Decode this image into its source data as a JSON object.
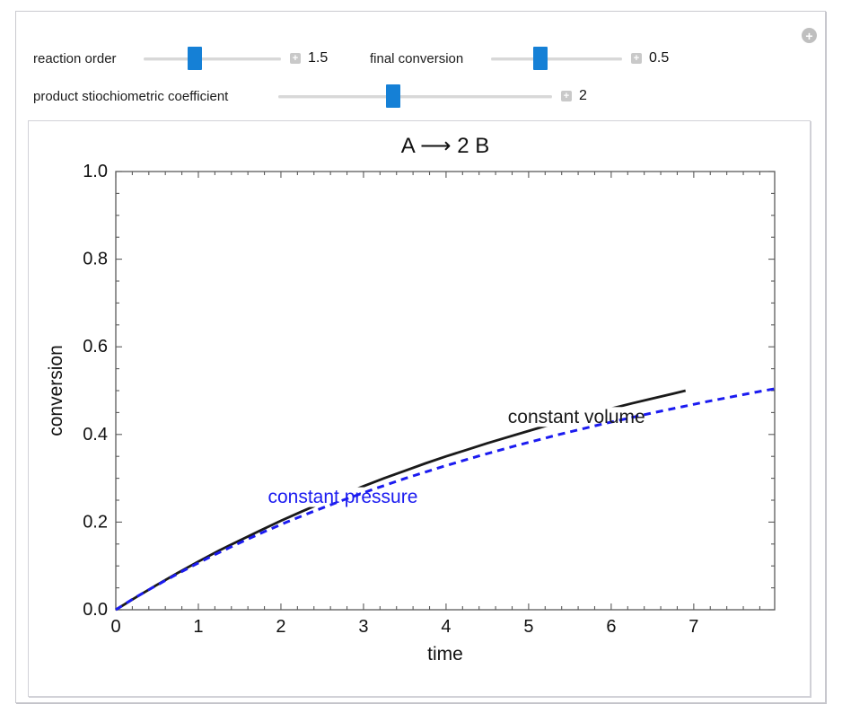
{
  "window": {
    "background": "#ffffff",
    "accent_blue": "#1580d6"
  },
  "icons": {
    "snapshot_plus": "+",
    "expand_plus": "+"
  },
  "controls": {
    "sliders": [
      {
        "label": "reaction order",
        "value": "1.5",
        "thumb_percent": 37
      },
      {
        "label": "final conversion",
        "value": "0.5",
        "thumb_percent": 38
      },
      {
        "label": "product stiochiometric coefficient",
        "value": "2",
        "thumb_percent": 42
      }
    ]
  },
  "chart_data": {
    "type": "line",
    "title": "A ⟶ 2 B",
    "xlabel": "time",
    "ylabel": "conversion",
    "xlim": [
      0,
      7.98
    ],
    "ylim": [
      0,
      1.0
    ],
    "xticks": [
      0,
      1,
      2,
      3,
      4,
      5,
      6,
      7
    ],
    "xtick_labels": [
      "0",
      "1",
      "2",
      "3",
      "4",
      "5",
      "6",
      "7"
    ],
    "yticks": [
      0,
      0.2,
      0.4,
      0.6,
      0.8,
      1.0
    ],
    "ytick_labels": [
      "0.0",
      "0.2",
      "0.4",
      "0.6",
      "0.8",
      "1.0"
    ],
    "x_minor_step": 0.2,
    "y_minor_step": 0.05,
    "frame": true,
    "grid": false,
    "frame_color": "#5a5a5a",
    "series": [
      {
        "name": "constant volume",
        "color": "#1a1a1a",
        "style": "solid",
        "label_pos": [
          5.58,
          0.44
        ],
        "label_bg": [
          206,
          22
        ],
        "points": [
          [
            0,
            0
          ],
          [
            0.25,
            0.029
          ],
          [
            0.5,
            0.057
          ],
          [
            0.75,
            0.084
          ],
          [
            1,
            0.11
          ],
          [
            1.25,
            0.135
          ],
          [
            1.5,
            0.158
          ],
          [
            1.75,
            0.181
          ],
          [
            2,
            0.203
          ],
          [
            2.25,
            0.224
          ],
          [
            2.5,
            0.244
          ],
          [
            2.75,
            0.263
          ],
          [
            3,
            0.282
          ],
          [
            3.25,
            0.3
          ],
          [
            3.5,
            0.317
          ],
          [
            3.75,
            0.334
          ],
          [
            4,
            0.35
          ],
          [
            4.25,
            0.365
          ],
          [
            4.5,
            0.38
          ],
          [
            4.75,
            0.394
          ],
          [
            5,
            0.408
          ],
          [
            5.25,
            0.422
          ],
          [
            5.5,
            0.435
          ],
          [
            5.75,
            0.447
          ],
          [
            6,
            0.459
          ],
          [
            6.25,
            0.471
          ],
          [
            6.5,
            0.482
          ],
          [
            6.75,
            0.493
          ],
          [
            6.9,
            0.5
          ]
        ]
      },
      {
        "name": "constant pressure",
        "color": "#1b1bf0",
        "style": "dashed",
        "label_pos": [
          2.75,
          0.257
        ],
        "label_bg": [
          198,
          22
        ],
        "points": [
          [
            0,
            0
          ],
          [
            0.21,
            0.025
          ],
          [
            0.44,
            0.05
          ],
          [
            0.68,
            0.075
          ],
          [
            0.93,
            0.1
          ],
          [
            1.19,
            0.125
          ],
          [
            1.47,
            0.15
          ],
          [
            1.76,
            0.175
          ],
          [
            2.07,
            0.2
          ],
          [
            2.4,
            0.225
          ],
          [
            2.75,
            0.25
          ],
          [
            3.12,
            0.275
          ],
          [
            3.51,
            0.3
          ],
          [
            3.93,
            0.325
          ],
          [
            4.38,
            0.35
          ],
          [
            4.86,
            0.375
          ],
          [
            5.37,
            0.4
          ],
          [
            5.92,
            0.425
          ],
          [
            6.52,
            0.45
          ],
          [
            7.16,
            0.475
          ],
          [
            7.85,
            0.5
          ],
          [
            7.98,
            0.504
          ]
        ]
      }
    ]
  }
}
